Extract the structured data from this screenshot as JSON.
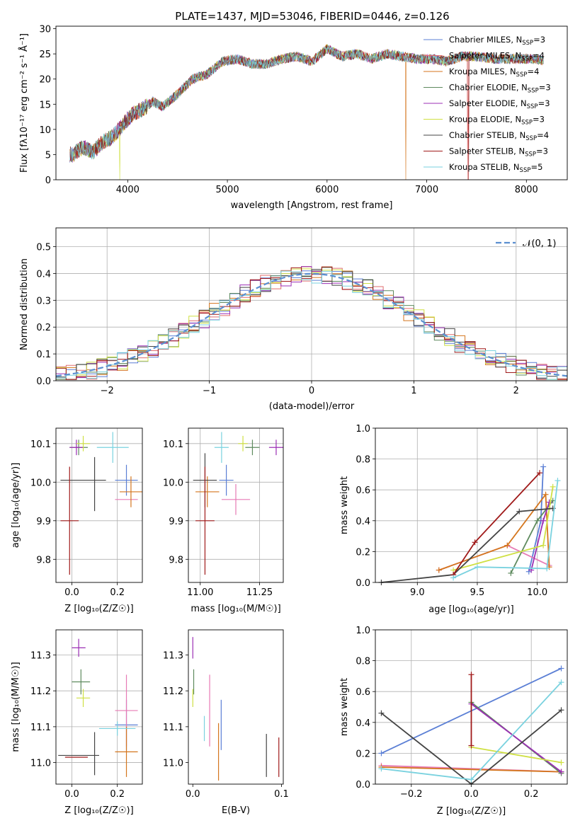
{
  "figure": {
    "title": "PLATE=1437, MJD=53046, FIBERID=0446, z=0.126"
  },
  "chart_data": [
    {
      "id": "spectrum",
      "type": "line",
      "xlabel": "wavelength [Angstrom, rest frame]",
      "ylabel": "Flux [fλ10⁻¹⁷ erg cm⁻² s⁻¹ Å⁻¹]",
      "xlim": [
        3280,
        8410
      ],
      "ylim": [
        0,
        30.5
      ],
      "xticks": [
        4000,
        5000,
        6000,
        7000,
        8000
      ],
      "yticks": [
        0,
        5,
        10,
        15,
        20,
        25,
        30
      ],
      "grid": false,
      "legend": "top-right",
      "x": [
        3450,
        3550,
        3650,
        3750,
        3850,
        3950,
        4050,
        4150,
        4250,
        4350,
        4500,
        4650,
        4800,
        4950,
        5100,
        5250,
        5400,
        5550,
        5700,
        5850,
        6000,
        6150,
        6300,
        6450,
        6600,
        6750,
        6900,
        7050,
        7200,
        7350,
        7500,
        7700,
        7900,
        8100,
        8200
      ],
      "y": [
        5.0,
        6.5,
        5.5,
        7.5,
        8.5,
        11,
        13,
        14,
        15.5,
        14.5,
        17,
        20,
        21,
        23.5,
        24,
        23,
        23,
        24,
        24.5,
        23.5,
        26,
        24.5,
        25,
        24,
        25,
        24.5,
        24,
        24,
        23.5,
        24.5,
        24.5,
        24,
        24,
        24,
        23.5
      ],
      "series": [
        {
          "name": "Chabrier MILES, N_SSP=3",
          "label": "Chabrier MILES, N",
          "sub": "SSP",
          "suffix": "=3",
          "color": "#5b7fd5"
        },
        {
          "name": "Salpeter MILES, N_SSP=4",
          "label": "Salpeter MILES, N",
          "sub": "SSP",
          "suffix": "=4",
          "color": "#e06e6e"
        },
        {
          "name": "Kroupa MILES, N_SSP=4",
          "label": "Kroupa MILES, N",
          "sub": "SSP",
          "suffix": "=4",
          "color": "#d4761e"
        },
        {
          "name": "Chabrier ELODIE, N_SSP=3",
          "label": "Chabrier ELODIE, N",
          "sub": "SSP",
          "suffix": "=3",
          "color": "#5e8a5e"
        },
        {
          "name": "Salpeter ELODIE, N_SSP=3",
          "label": "Salpeter ELODIE, N",
          "sub": "SSP",
          "suffix": "=3",
          "color": "#9b2fb5"
        },
        {
          "name": "Kroupa ELODIE, N_SSP=3",
          "label": "Kroupa ELODIE, N",
          "sub": "SSP",
          "suffix": "=3",
          "color": "#cfe043"
        },
        {
          "name": "Chabrier STELIB, N_SSP=4",
          "label": "Chabrier STELIB, N",
          "sub": "SSP",
          "suffix": "=4",
          "color": "#444444"
        },
        {
          "name": "Salpeter STELIB, N_SSP=3",
          "label": "Salpeter STELIB, N",
          "sub": "SSP",
          "suffix": "=3",
          "color": "#a01a1a"
        },
        {
          "name": "Kroupa STELIB, N_SSP=5",
          "label": "Kroupa STELIB, N",
          "sub": "SSP",
          "suffix": "=5",
          "color": "#7ad2df"
        }
      ]
    },
    {
      "id": "residuals",
      "type": "line",
      "xlabel": "(data-model)/error",
      "ylabel": "Normed distribution",
      "xlim": [
        -2.5,
        2.5
      ],
      "ylim": [
        0,
        0.57
      ],
      "xticks": [
        -2,
        -1,
        0,
        1,
        2
      ],
      "yticks": [
        0.0,
        0.1,
        0.2,
        0.3,
        0.4,
        0.5
      ],
      "grid": true,
      "legend": "top-right",
      "legend_label": "𝒩(0, 1)",
      "normal": {
        "mu": 0,
        "sigma": 1,
        "color": "#5b8fd0"
      },
      "bin_width": 0.1,
      "bins_start": -2.5
    },
    {
      "id": "age-vs-Z",
      "type": "scatter",
      "xlabel": "Z [log₁₀(Z/Z☉)]",
      "ylabel": "age  [log₁₀(age/yr)]",
      "xlim": [
        -0.07,
        0.31
      ],
      "ylim": [
        9.74,
        10.14
      ],
      "xticks": [
        0.0,
        0.2
      ],
      "yticks": [
        9.8,
        9.9,
        10.0,
        10.1
      ],
      "grid": true,
      "points": [
        {
          "x": 0.24,
          "y": 10.005,
          "xerr": 0.05,
          "yerr": 0.04,
          "color": "#5b7fd5"
        },
        {
          "x": 0.24,
          "y": 9.955,
          "xerr": 0.05,
          "yerr": 0.0,
          "color": "#e77ab5"
        },
        {
          "x": 0.26,
          "y": 9.975,
          "xerr": 0.05,
          "yerr": 0.04,
          "color": "#d4761e"
        },
        {
          "x": 0.03,
          "y": 10.09,
          "xerr": 0.04,
          "yerr": 0.02,
          "color": "#5e8a5e"
        },
        {
          "x": 0.02,
          "y": 10.09,
          "xerr": 0.03,
          "yerr": 0.02,
          "color": "#9b2fb5"
        },
        {
          "x": 0.05,
          "y": 10.1,
          "xerr": 0.03,
          "yerr": 0.02,
          "color": "#cfe043"
        },
        {
          "x": 0.05,
          "y": 10.005,
          "xerr": 0.1,
          "yerr": 0.0,
          "color": "#444444"
        },
        {
          "x": 0.1,
          "y": 9.995,
          "xerr": 0.0,
          "yerr": 0.07,
          "color": "#444444"
        },
        {
          "x": -0.01,
          "y": 9.9,
          "xerr": 0.04,
          "yerr": 0.14,
          "color": "#a01a1a"
        },
        {
          "x": 0.18,
          "y": 10.09,
          "xerr": 0.07,
          "yerr": 0.04,
          "color": "#7ad2df"
        }
      ]
    },
    {
      "id": "age-vs-mass",
      "type": "scatter",
      "xlabel": "mass [log₁₀(M/M☉)]",
      "ylabel": "",
      "xlim": [
        10.95,
        11.35
      ],
      "ylim": [
        9.74,
        10.14
      ],
      "xticks": [
        11.0,
        11.25
      ],
      "tick_labels": [
        "11.00",
        "11.25"
      ],
      "yticks": [
        9.8,
        9.9,
        10.0,
        10.1
      ],
      "grid": true,
      "points": [
        {
          "x": 11.11,
          "y": 10.005,
          "xerr": 0.03,
          "yerr": 0.04,
          "color": "#5b7fd5"
        },
        {
          "x": 11.15,
          "y": 9.955,
          "xerr": 0.06,
          "yerr": 0.04,
          "color": "#e77ab5"
        },
        {
          "x": 11.03,
          "y": 9.975,
          "xerr": 0.05,
          "yerr": 0.04,
          "color": "#d4761e"
        },
        {
          "x": 11.22,
          "y": 10.09,
          "xerr": 0.03,
          "yerr": 0.02,
          "color": "#5e8a5e"
        },
        {
          "x": 11.32,
          "y": 10.09,
          "xerr": 0.03,
          "yerr": 0.02,
          "color": "#9b2fb5"
        },
        {
          "x": 11.18,
          "y": 10.1,
          "xerr": 0.02,
          "yerr": 0.02,
          "color": "#cfe043"
        },
        {
          "x": 11.02,
          "y": 10.005,
          "xerr": 0.05,
          "yerr": 0.07,
          "color": "#444444"
        },
        {
          "x": 11.02,
          "y": 9.9,
          "xerr": 0.04,
          "yerr": 0.14,
          "color": "#a01a1a"
        },
        {
          "x": 11.09,
          "y": 10.09,
          "xerr": 0.03,
          "yerr": 0.04,
          "color": "#7ad2df"
        }
      ]
    },
    {
      "id": "weight-vs-age",
      "type": "line",
      "xlabel": "age  [log₁₀(age/yr)]",
      "ylabel": "mass weight",
      "xlim": [
        8.65,
        10.25
      ],
      "ylim": [
        0,
        1.0
      ],
      "xticks": [
        9.0,
        9.5,
        10.0
      ],
      "yticks": [
        0.0,
        0.2,
        0.4,
        0.6,
        0.8,
        1.0
      ],
      "grid": true,
      "series": [
        {
          "color": "#5b7fd5",
          "x": [
            9.93,
            10.03,
            10.05
          ],
          "y": [
            0.07,
            0.4,
            0.75
          ]
        },
        {
          "color": "#e77ab5",
          "x": [
            9.18,
            9.75,
            10.1
          ],
          "y": [
            0.08,
            0.24,
            0.11
          ]
        },
        {
          "color": "#d4761e",
          "x": [
            9.18,
            9.75,
            10.07,
            10.1
          ],
          "y": [
            0.08,
            0.24,
            0.57,
            0.1
          ]
        },
        {
          "color": "#5e8a5e",
          "x": [
            9.78,
            10.0,
            10.13
          ],
          "y": [
            0.06,
            0.4,
            0.53
          ]
        },
        {
          "color": "#9b2fb5",
          "x": [
            9.95,
            10.05,
            10.1
          ],
          "y": [
            0.08,
            0.4,
            0.52
          ]
        },
        {
          "color": "#cfe043",
          "x": [
            9.3,
            10.05,
            10.13
          ],
          "y": [
            0.08,
            0.24,
            0.62
          ]
        },
        {
          "color": "#444444",
          "x": [
            8.7,
            9.3,
            9.85,
            10.13
          ],
          "y": [
            0.0,
            0.05,
            0.46,
            0.48
          ]
        },
        {
          "color": "#a01a1a",
          "x": [
            9.3,
            9.48,
            10.02
          ],
          "y": [
            0.05,
            0.26,
            0.71
          ]
        },
        {
          "color": "#7ad2df",
          "x": [
            9.3,
            9.5,
            10.08,
            10.17
          ],
          "y": [
            0.03,
            0.1,
            0.09,
            0.66
          ]
        }
      ]
    },
    {
      "id": "mass-vs-Z",
      "type": "scatter",
      "xlabel": "Z [log₁₀(Z/Z☉)]",
      "ylabel": "mass [log₁₀(M/M☉)]",
      "xlim": [
        -0.07,
        0.31
      ],
      "ylim": [
        10.94,
        11.37
      ],
      "xticks": [
        0.0,
        0.2
      ],
      "yticks": [
        11.0,
        11.1,
        11.2,
        11.3
      ],
      "grid": true,
      "points": [
        {
          "x": 0.24,
          "y": 11.105,
          "xerr": 0.05,
          "yerr": 0.07,
          "color": "#5b7fd5"
        },
        {
          "x": 0.24,
          "y": 11.145,
          "xerr": 0.05,
          "yerr": 0.1,
          "color": "#e77ab5"
        },
        {
          "x": 0.24,
          "y": 11.03,
          "xerr": 0.05,
          "yerr": 0.07,
          "color": "#d4761e"
        },
        {
          "x": 0.04,
          "y": 11.225,
          "xerr": 0.04,
          "yerr": 0.035,
          "color": "#5e8a5e"
        },
        {
          "x": 0.03,
          "y": 11.32,
          "xerr": 0.03,
          "yerr": 0.025,
          "color": "#9b2fb5"
        },
        {
          "x": 0.05,
          "y": 11.18,
          "xerr": 0.03,
          "yerr": 0.025,
          "color": "#cfe043"
        },
        {
          "x": 0.03,
          "y": 11.02,
          "xerr": 0.09,
          "yerr": 0.0,
          "color": "#444444"
        },
        {
          "x": 0.1,
          "y": 11.025,
          "xerr": 0.0,
          "yerr": 0.06,
          "color": "#444444"
        },
        {
          "x": 0.02,
          "y": 11.015,
          "xerr": 0.05,
          "yerr": 0.0,
          "color": "#a01a1a"
        },
        {
          "x": 0.2,
          "y": 11.095,
          "xerr": 0.08,
          "yerr": 0.02,
          "color": "#7ad2df"
        }
      ]
    },
    {
      "id": "mass-vs-ebv",
      "type": "scatter",
      "xlabel": "E(B-V)",
      "ylabel": "",
      "xlim": [
        -0.005,
        0.102
      ],
      "ylim": [
        10.94,
        11.37
      ],
      "xticks": [
        0.0,
        0.1
      ],
      "yticks": [
        11.0,
        11.1,
        11.2,
        11.3
      ],
      "grid": false,
      "points": [
        {
          "x": 0.032,
          "y": 11.105,
          "xerr": 0,
          "yerr": 0.07,
          "color": "#5b7fd5"
        },
        {
          "x": 0.019,
          "y": 11.145,
          "xerr": 0,
          "yerr": 0.1,
          "color": "#e77ab5"
        },
        {
          "x": 0.029,
          "y": 11.03,
          "xerr": 0,
          "yerr": 0.08,
          "color": "#d4761e"
        },
        {
          "x": 0.001,
          "y": 11.225,
          "xerr": 0,
          "yerr": 0.035,
          "color": "#5e8a5e"
        },
        {
          "x": 0.0,
          "y": 11.32,
          "xerr": 0,
          "yerr": 0.03,
          "color": "#9b2fb5"
        },
        {
          "x": 0.0,
          "y": 11.18,
          "xerr": 0,
          "yerr": 0.025,
          "color": "#cfe043"
        },
        {
          "x": 0.083,
          "y": 11.02,
          "xerr": 0,
          "yerr": 0.06,
          "color": "#444444"
        },
        {
          "x": 0.097,
          "y": 11.015,
          "xerr": 0,
          "yerr": 0.055,
          "color": "#a01a1a"
        },
        {
          "x": 0.013,
          "y": 11.095,
          "xerr": 0,
          "yerr": 0.035,
          "color": "#7ad2df"
        }
      ]
    },
    {
      "id": "weight-vs-Z",
      "type": "line",
      "xlabel": "Z [log₁₀(Z/Z☉)]",
      "ylabel": "mass weight",
      "xlim": [
        -0.32,
        0.32
      ],
      "ylim": [
        0,
        1.0
      ],
      "xticks": [
        -0.2,
        0.0,
        0.2
      ],
      "yticks": [
        0.0,
        0.2,
        0.4,
        0.6,
        0.8,
        1.0
      ],
      "grid": true,
      "series": [
        {
          "color": "#5b7fd5",
          "x": [
            -0.3,
            0.3
          ],
          "y": [
            0.2,
            0.75
          ]
        },
        {
          "color": "#e77ab5",
          "x": [
            -0.3,
            0.3
          ],
          "y": [
            0.12,
            0.08
          ]
        },
        {
          "color": "#d4761e",
          "x": [
            -0.3,
            0.3
          ],
          "y": [
            0.11,
            0.08
          ]
        },
        {
          "color": "#5e8a5e",
          "x": [
            0.0,
            0.3
          ],
          "y": [
            0.53,
            0.07
          ]
        },
        {
          "color": "#9b2fb5",
          "x": [
            0.0,
            0.3
          ],
          "y": [
            0.52,
            0.08
          ]
        },
        {
          "color": "#cfe043",
          "x": [
            0.0,
            0.3
          ],
          "y": [
            0.24,
            0.14
          ]
        },
        {
          "color": "#444444",
          "x": [
            -0.3,
            0.0,
            0.3
          ],
          "y": [
            0.46,
            0.0,
            0.48
          ]
        },
        {
          "color": "#a01a1a",
          "x": [
            0.0,
            0.0
          ],
          "y": [
            0.25,
            0.71
          ]
        },
        {
          "color": "#7ad2df",
          "x": [
            -0.3,
            0.0,
            0.3
          ],
          "y": [
            0.1,
            0.03,
            0.66
          ]
        }
      ]
    }
  ]
}
